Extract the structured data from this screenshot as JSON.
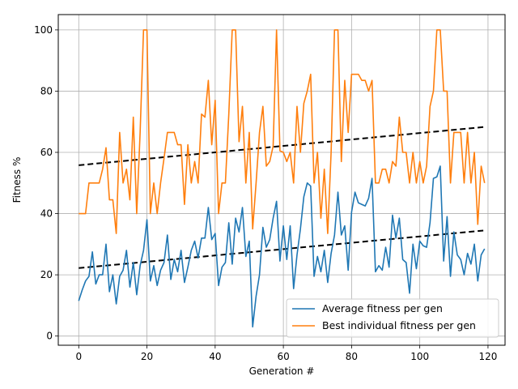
{
  "chart_data": {
    "type": "line",
    "xlabel": "Generation #",
    "ylabel": "Fitness %",
    "xlim": [
      -6,
      125
    ],
    "ylim": [
      -3,
      105
    ],
    "xticks": [
      0,
      20,
      40,
      60,
      80,
      100,
      120
    ],
    "yticks": [
      0,
      20,
      40,
      60,
      80,
      100
    ],
    "grid": true,
    "legend_position": "lower-right",
    "series": [
      {
        "name": "Average fitness per gen",
        "color": "#1f77b4",
        "x": [
          0,
          1,
          2,
          3,
          4,
          5,
          6,
          7,
          8,
          9,
          10,
          11,
          12,
          13,
          14,
          15,
          16,
          17,
          18,
          19,
          20,
          21,
          22,
          23,
          24,
          25,
          26,
          27,
          28,
          29,
          30,
          31,
          32,
          33,
          34,
          35,
          36,
          37,
          38,
          39,
          40,
          41,
          42,
          43,
          44,
          45,
          46,
          47,
          48,
          49,
          50,
          51,
          52,
          53,
          54,
          55,
          56,
          57,
          58,
          59,
          60,
          61,
          62,
          63,
          64,
          65,
          66,
          67,
          68,
          69,
          70,
          71,
          72,
          73,
          74,
          75,
          76,
          77,
          78,
          79,
          80,
          81,
          82,
          83,
          84,
          85,
          86,
          87,
          88,
          89,
          90,
          91,
          92,
          93,
          94,
          95,
          96,
          97,
          98,
          99,
          100,
          101,
          102,
          103,
          104,
          105,
          106,
          107,
          108,
          109,
          110,
          111,
          112,
          113,
          114,
          115,
          116,
          117,
          118,
          119
        ],
        "values": [
          11.5,
          15,
          18,
          19.5,
          27.5,
          17,
          20,
          20,
          30,
          14.5,
          20,
          10.5,
          19.5,
          21.5,
          28,
          16,
          24,
          13.5,
          23,
          28,
          38,
          18,
          23,
          16.5,
          21.5,
          24,
          33,
          18.5,
          25,
          21,
          28,
          17.5,
          22.5,
          28,
          31,
          25.5,
          32,
          32,
          42,
          31.5,
          33.5,
          16.5,
          22.5,
          24,
          37,
          23.5,
          38.5,
          34,
          42,
          26,
          31,
          3,
          13,
          20,
          35.5,
          29,
          31.5,
          38.5,
          44,
          24.5,
          36,
          25,
          36,
          15.5,
          26.5,
          35,
          45.5,
          50,
          49,
          19.5,
          26,
          21,
          28,
          17.5,
          27,
          33,
          47,
          33,
          36,
          21.5,
          40.5,
          47,
          43.5,
          43,
          42.5,
          45,
          51.5,
          21,
          23,
          21.5,
          29,
          22.5,
          39.5,
          32,
          38.5,
          25,
          24,
          14,
          30,
          22,
          31,
          29.5,
          29,
          37,
          51.5,
          52,
          55.5,
          24.5,
          39,
          19.5,
          34,
          26.5,
          25,
          20,
          27,
          23.5,
          30,
          18,
          26.5,
          28.5
        ]
      },
      {
        "name": "Best individual fitness per gen",
        "color": "#ff7f0e",
        "x": [
          0,
          1,
          2,
          3,
          4,
          5,
          6,
          7,
          8,
          9,
          10,
          11,
          12,
          13,
          14,
          15,
          16,
          17,
          18,
          19,
          20,
          21,
          22,
          23,
          24,
          25,
          26,
          27,
          28,
          29,
          30,
          31,
          32,
          33,
          34,
          35,
          36,
          37,
          38,
          39,
          40,
          41,
          42,
          43,
          44,
          45,
          46,
          47,
          48,
          49,
          50,
          51,
          52,
          53,
          54,
          55,
          56,
          57,
          58,
          59,
          60,
          61,
          62,
          63,
          64,
          65,
          66,
          67,
          68,
          69,
          70,
          71,
          72,
          73,
          74,
          75,
          76,
          77,
          78,
          79,
          80,
          81,
          82,
          83,
          84,
          85,
          86,
          87,
          88,
          89,
          90,
          91,
          92,
          93,
          94,
          95,
          96,
          97,
          98,
          99,
          100,
          101,
          102,
          103,
          104,
          105,
          106,
          107,
          108,
          109,
          110,
          111,
          112,
          113,
          114,
          115,
          116,
          117,
          118,
          119
        ],
        "values": [
          40,
          40,
          40,
          50,
          50,
          50,
          50,
          54.5,
          61.5,
          44.5,
          44.5,
          33.5,
          66.5,
          50,
          54.5,
          44.5,
          71.5,
          40,
          66.5,
          100,
          100,
          40,
          50,
          40,
          50,
          58,
          66.5,
          66.5,
          66.5,
          62.5,
          62.5,
          43,
          62.5,
          50,
          57,
          50,
          72.5,
          71.5,
          83.5,
          62.5,
          77,
          40,
          50,
          50,
          72.5,
          100,
          100,
          63.5,
          75,
          50,
          66.5,
          35,
          50,
          66.5,
          75,
          55.5,
          57,
          62,
          100,
          60.5,
          60,
          57,
          60,
          50,
          75,
          60,
          76,
          80,
          85.5,
          50,
          60,
          38.5,
          54.5,
          33.5,
          60,
          100,
          100,
          57,
          83.5,
          66.5,
          85.5,
          85.5,
          85.5,
          83.5,
          83.5,
          80,
          83.5,
          50,
          50,
          54.5,
          54.5,
          50,
          57,
          55.5,
          71.5,
          60,
          60,
          50,
          60,
          50,
          57,
          50,
          55.5,
          75,
          80,
          100,
          100,
          80,
          80,
          50,
          66.5,
          66.5,
          66.5,
          50,
          66.5,
          50,
          60,
          36.5,
          55.5,
          50
        ]
      }
    ],
    "trendlines": [
      {
        "series": "Average fitness per gen",
        "style": "dashed",
        "color": "#000000",
        "x": [
          0,
          119
        ],
        "values": [
          22.2,
          34.5
        ]
      },
      {
        "series": "Best individual fitness per gen",
        "style": "dashed",
        "color": "#000000",
        "x": [
          0,
          119
        ],
        "values": [
          55.8,
          68.3
        ]
      }
    ]
  },
  "colors": {
    "grid": "#b0b0b0",
    "axes": "#000000",
    "legend_border": "#cccccc"
  }
}
